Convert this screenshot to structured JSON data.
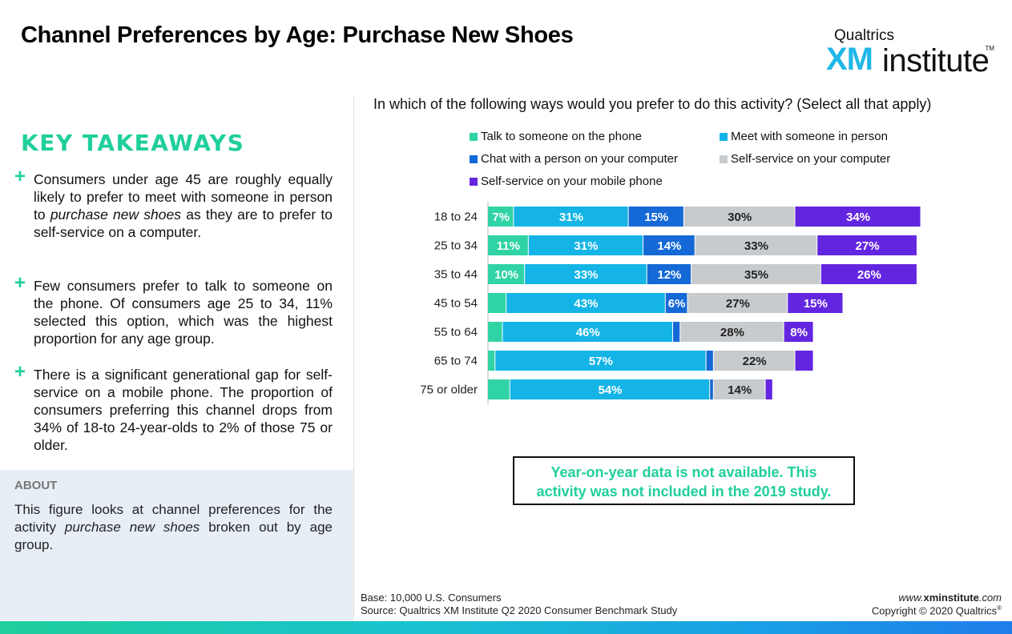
{
  "header": {
    "title": "Channel Preferences by Age: Purchase New Shoes",
    "logo_top": "Qualtrics",
    "logo_xm": "XM",
    "logo_institute": "institute",
    "logo_tm": "TM"
  },
  "takeaways": {
    "title": "KEY TAKEAWAYS",
    "items": [
      {
        "pre": "Consumers under age 45 are roughly equally likely to prefer to meet with someone in person to ",
        "em": "purchase new shoes",
        "post": " as they are to prefer to self-service on a computer."
      },
      {
        "pre": "Few consumers prefer to talk to someone on the phone. Of consumers age 25 to 34, 11% selected this option, which was the highest proportion for any age group.",
        "em": "",
        "post": ""
      },
      {
        "pre": "There is a significant generational gap for self-service on a mobile phone. The proportion of consumers preferring this channel drops from 34% of 18-to 24-year-olds to 2% of those 75 or older.",
        "em": "",
        "post": ""
      }
    ]
  },
  "about": {
    "title": "ABOUT",
    "pre": "This figure looks at channel preferences for the activity ",
    "em": "purchase new shoes",
    "post": " broken out by age group."
  },
  "question": "In which of the following ways would you prefer to do this activity? (Select all that apply)",
  "note": {
    "line1": "Year-on-year data is not available. This",
    "line2": "activity was not included in the 2019 study."
  },
  "footer": {
    "base": "Base: 10,000 U.S. Consumers",
    "source": "Source: Qualtrics XM Institute Q2 2020 Consumer Benchmark Study",
    "website_pre": "www.",
    "website_bold": "xminstitute",
    "website_post": ".com",
    "copyright": "Copyright © 2020 Qualtrics"
  },
  "chart_data": {
    "type": "bar",
    "orientation": "horizontal",
    "stacked": true,
    "categories": [
      "18 to 24",
      "25 to 34",
      "35 to 44",
      "45 to 54",
      "55 to 64",
      "65 to 74",
      "75 or older"
    ],
    "series": [
      {
        "name": "Talk to someone on the phone",
        "color": "#2fd3a4",
        "values": [
          7,
          11,
          10,
          5,
          4,
          2,
          6
        ],
        "labels": [
          "7%",
          "11%",
          "10%",
          "",
          "",
          "",
          ""
        ]
      },
      {
        "name": "Meet with someone in person",
        "color": "#14b4e6",
        "values": [
          31,
          31,
          33,
          43,
          46,
          57,
          54
        ],
        "labels": [
          "31%",
          "31%",
          "33%",
          "43%",
          "46%",
          "57%",
          "54%"
        ]
      },
      {
        "name": "Chat with a person on your computer",
        "color": "#1469d6",
        "values": [
          15,
          14,
          12,
          6,
          2,
          2,
          1
        ],
        "labels": [
          "15%",
          "14%",
          "12%",
          "6%",
          "",
          "",
          ""
        ]
      },
      {
        "name": "Self-service on your computer",
        "color": "#c8cbce",
        "values": [
          30,
          33,
          35,
          27,
          28,
          22,
          14
        ],
        "labels": [
          "30%",
          "33%",
          "35%",
          "27%",
          "28%",
          "22%",
          "14%"
        ]
      },
      {
        "name": "Self-service on your mobile phone",
        "color": "#6326e0",
        "values": [
          34,
          27,
          26,
          15,
          8,
          5,
          2
        ],
        "labels": [
          "34%",
          "27%",
          "26%",
          "15%",
          "8%",
          "",
          ""
        ]
      }
    ],
    "legend_position": "top",
    "grid": false
  }
}
